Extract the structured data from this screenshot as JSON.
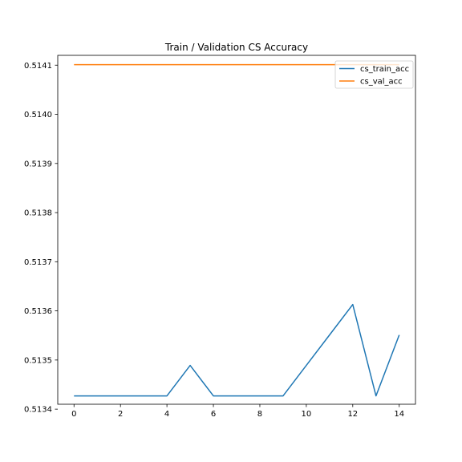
{
  "chart_data": {
    "type": "line",
    "title": "Train / Validation CS Accuracy",
    "xlabel": "",
    "ylabel": "",
    "x": [
      0,
      1,
      2,
      3,
      4,
      5,
      6,
      7,
      8,
      9,
      10,
      11,
      12,
      13,
      14
    ],
    "xlim": [
      -0.7,
      14.7
    ],
    "ylim": [
      0.51341,
      0.51412
    ],
    "x_ticks": [
      0,
      2,
      4,
      6,
      8,
      10,
      12,
      14
    ],
    "y_ticks": [
      0.5134,
      0.5135,
      0.5136,
      0.5137,
      0.5138,
      0.5139,
      0.514,
      0.5141
    ],
    "y_tick_labels": [
      "0.5134",
      "0.5135",
      "0.5136",
      "0.5137",
      "0.5138",
      "0.5139",
      "0.5140",
      "0.5141"
    ],
    "grid": false,
    "legend_position": "upper right",
    "series": [
      {
        "name": "cs_train_acc",
        "color": "#1f77b4",
        "values": [
          0.513427,
          0.513427,
          0.513427,
          0.513427,
          0.513427,
          0.513489,
          0.513427,
          0.513427,
          0.513427,
          0.513427,
          0.513489,
          0.513551,
          0.513613,
          0.513427,
          0.513551
        ]
      },
      {
        "name": "cs_val_acc",
        "color": "#ff7f0e",
        "values": [
          0.514101,
          0.514101,
          0.514101,
          0.514101,
          0.514101,
          0.514101,
          0.514101,
          0.514101,
          0.514101,
          0.514101,
          0.514101,
          0.514101,
          0.514101,
          0.514101,
          0.514101
        ]
      }
    ]
  }
}
